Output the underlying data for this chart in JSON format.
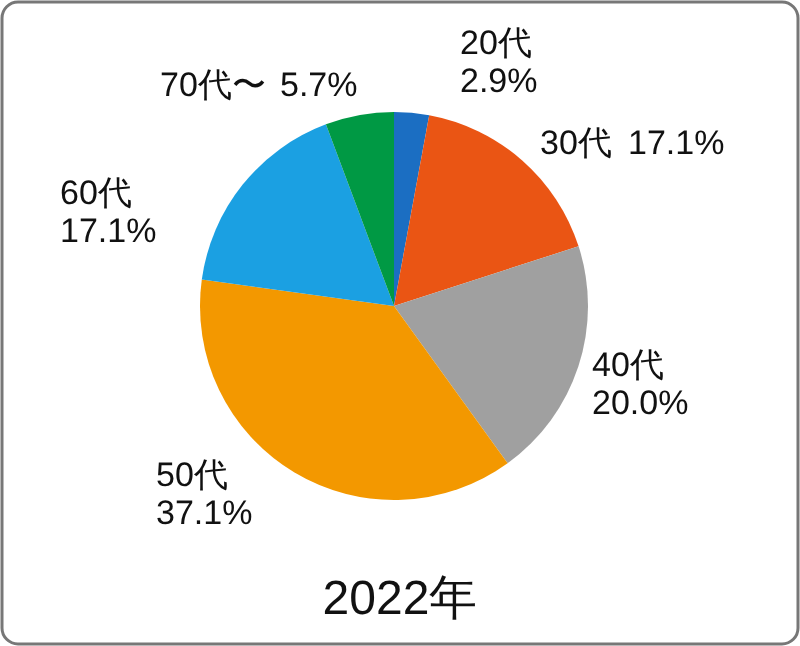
{
  "chart_data": {
    "type": "pie",
    "title": "2022年",
    "categories": [
      "20代",
      "30代",
      "40代",
      "50代",
      "60代",
      "70代〜"
    ],
    "values": [
      2.9,
      17.1,
      20.0,
      37.1,
      17.1,
      5.7
    ],
    "value_labels": [
      "2.9%",
      "17.1%",
      "20.0%",
      "37.1%",
      "17.1%",
      "5.7%"
    ],
    "colors": [
      "#1b6ec2",
      "#ea5514",
      "#a0a0a0",
      "#f39800",
      "#1ba0e2",
      "#009944"
    ]
  }
}
